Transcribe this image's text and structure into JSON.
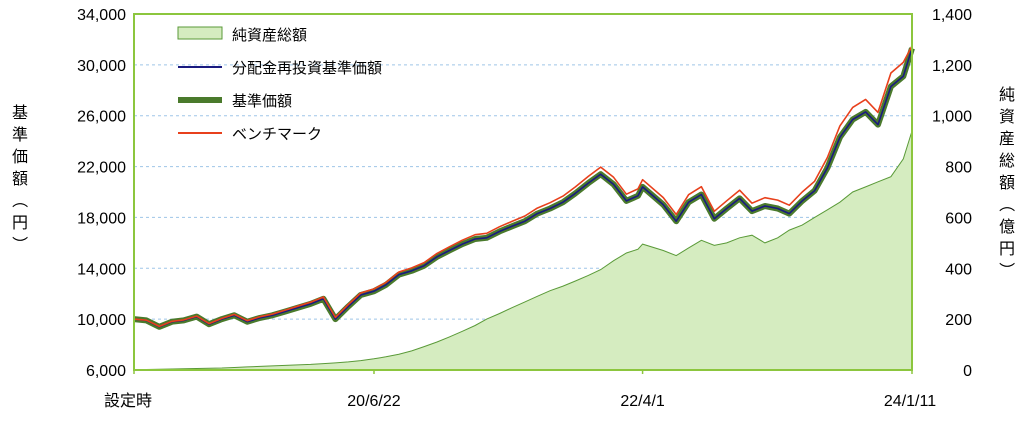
{
  "chart_data": {
    "type": "line",
    "title": "",
    "left_axis": {
      "label": "基準価額（円）",
      "ylim": [
        6000,
        34000
      ],
      "ticks": [
        "6,000",
        "10,000",
        "14,000",
        "18,000",
        "22,000",
        "26,000",
        "30,000",
        "34,000"
      ],
      "tick_values": [
        6000,
        10000,
        14000,
        18000,
        22000,
        26000,
        30000,
        34000
      ]
    },
    "right_axis": {
      "label": "純資産総額（億円）",
      "ylim": [
        0,
        1400
      ],
      "ticks": [
        "0",
        "200",
        "400",
        "600",
        "800",
        "1,000",
        "1,200",
        "1,400"
      ],
      "tick_values": [
        0,
        200,
        400,
        600,
        800,
        1000,
        1200,
        1400
      ]
    },
    "x_axis": {
      "ticks": [
        "設定時",
        "20/6/22",
        "22/4/1",
        "24/1/11"
      ],
      "tick_dates": [
        "2018-11-21",
        "2020-06-22",
        "2022-04-01",
        "2024-01-11"
      ],
      "xlim": [
        "2018-11-21",
        "2024-01-11"
      ]
    },
    "grid": true,
    "legend": {
      "placement": "top-left",
      "entries": [
        {
          "label": "純資産総額",
          "color": "#d5ecc0",
          "style": "area"
        },
        {
          "label": "分配金再投資基準価額",
          "color": "#1a1a80",
          "style": "line"
        },
        {
          "label": "基準価額",
          "color": "#4a7a2c",
          "style": "thick-line"
        },
        {
          "label": "ベンチマーク",
          "color": "#e8401c",
          "style": "line"
        }
      ]
    },
    "x_dates": [
      "2018-11-21",
      "2018-12-21",
      "2019-01-21",
      "2019-02-21",
      "2019-03-21",
      "2019-04-21",
      "2019-05-21",
      "2019-06-21",
      "2019-07-21",
      "2019-08-21",
      "2019-09-21",
      "2019-10-21",
      "2019-11-21",
      "2019-12-21",
      "2020-01-21",
      "2020-02-21",
      "2020-03-21",
      "2020-04-21",
      "2020-05-21",
      "2020-06-22",
      "2020-07-21",
      "2020-08-21",
      "2020-09-21",
      "2020-10-21",
      "2020-11-21",
      "2020-12-21",
      "2021-01-21",
      "2021-02-21",
      "2021-03-21",
      "2021-04-21",
      "2021-05-21",
      "2021-06-21",
      "2021-07-21",
      "2021-08-21",
      "2021-09-21",
      "2021-10-21",
      "2021-11-21",
      "2021-12-21",
      "2022-01-21",
      "2022-02-21",
      "2022-03-21",
      "2022-04-01",
      "2022-05-21",
      "2022-06-21",
      "2022-07-21",
      "2022-08-21",
      "2022-09-21",
      "2022-10-21",
      "2022-11-21",
      "2022-12-21",
      "2023-01-21",
      "2023-02-21",
      "2023-03-21",
      "2023-04-21",
      "2023-05-21",
      "2023-06-21",
      "2023-07-21",
      "2023-08-21",
      "2023-09-21",
      "2023-10-21",
      "2023-11-21",
      "2023-12-21",
      "2024-01-11"
    ],
    "series": [
      {
        "name": "純資産総額",
        "axis": "right",
        "color": "#d5ecc0",
        "line_color": "#5a9a38",
        "values": [
          1,
          2,
          3,
          4,
          5,
          6,
          7,
          8,
          10,
          12,
          14,
          16,
          18,
          20,
          22,
          25,
          28,
          32,
          37,
          44,
          52,
          62,
          75,
          92,
          110,
          130,
          152,
          175,
          200,
          222,
          245,
          268,
          290,
          312,
          330,
          350,
          372,
          395,
          430,
          460,
          475,
          495,
          470,
          450,
          480,
          510,
          490,
          500,
          520,
          530,
          500,
          520,
          550,
          570,
          600,
          630,
          660,
          700,
          720,
          740,
          760,
          830,
          940
        ]
      },
      {
        "name": "分配金再投資基準価額",
        "axis": "left",
        "color": "#1a1a80",
        "values": [
          10000,
          9900,
          9400,
          9800,
          9900,
          10200,
          9600,
          10000,
          10300,
          9800,
          10100,
          10300,
          10600,
          10900,
          11200,
          11600,
          10000,
          11000,
          11900,
          12200,
          12700,
          13500,
          13800,
          14200,
          14900,
          15400,
          15900,
          16300,
          16400,
          16900,
          17300,
          17700,
          18300,
          18700,
          19200,
          19900,
          20700,
          21400,
          20600,
          19300,
          19700,
          20400,
          19000,
          17700,
          19200,
          19800,
          17900,
          18700,
          19500,
          18500,
          18900,
          18700,
          18300,
          19300,
          20100,
          21900,
          24300,
          25700,
          26300,
          25300,
          28300,
          29100,
          31300
        ]
      },
      {
        "name": "基準価額",
        "axis": "left",
        "color": "#4a7a2c",
        "values": [
          10000,
          9900,
          9400,
          9800,
          9900,
          10200,
          9600,
          10000,
          10300,
          9800,
          10100,
          10300,
          10600,
          10900,
          11200,
          11600,
          10000,
          11000,
          11900,
          12200,
          12700,
          13500,
          13800,
          14200,
          14900,
          15400,
          15900,
          16300,
          16400,
          16900,
          17300,
          17700,
          18300,
          18700,
          19200,
          19900,
          20700,
          21400,
          20600,
          19300,
          19700,
          20400,
          19000,
          17700,
          19200,
          19800,
          17900,
          18700,
          19500,
          18500,
          18900,
          18700,
          18300,
          19300,
          20100,
          21900,
          24300,
          25700,
          26300,
          25300,
          28300,
          29100,
          31300
        ]
      },
      {
        "name": "ベンチマーク",
        "axis": "left",
        "color": "#e8401c",
        "values": [
          10000,
          9920,
          9430,
          9830,
          9940,
          10240,
          9650,
          10060,
          10370,
          9880,
          10190,
          10400,
          10710,
          11020,
          11330,
          11740,
          10140,
          11150,
          12060,
          12380,
          12890,
          13710,
          14030,
          14450,
          15170,
          15690,
          16210,
          16640,
          16750,
          17270,
          17690,
          18110,
          18730,
          19160,
          19680,
          20400,
          21230,
          21960,
          21160,
          19830,
          20250,
          20970,
          19560,
          18230,
          19790,
          20420,
          18480,
          19310,
          20140,
          19120,
          19550,
          19360,
          18960,
          20000,
          20840,
          22710,
          25200,
          26650,
          27280,
          26260,
          29360,
          30190,
          31480
        ]
      }
    ]
  }
}
